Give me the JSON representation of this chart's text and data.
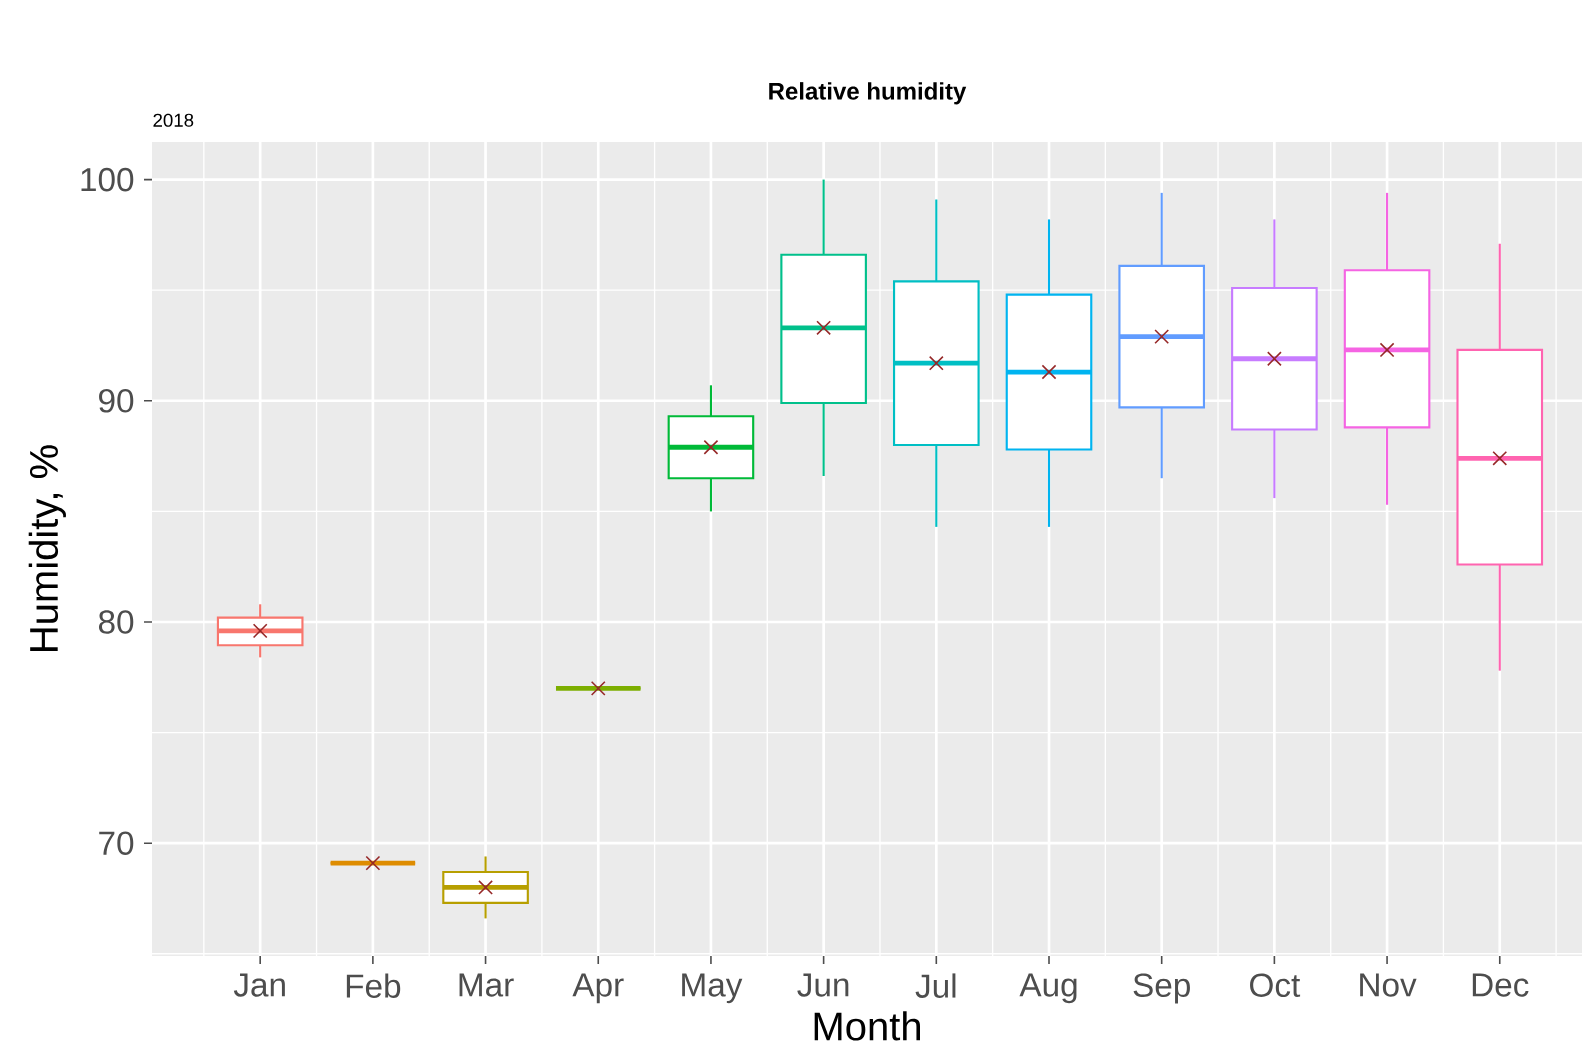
{
  "chart_data": {
    "type": "box",
    "title": "Relative humidity",
    "subtitle": "2018",
    "xlabel": "Month",
    "ylabel": "Humidity, %",
    "categories": [
      "Jan",
      "Feb",
      "Mar",
      "Apr",
      "May",
      "Jun",
      "Jul",
      "Aug",
      "Sep",
      "Oct",
      "Nov",
      "Dec"
    ],
    "ylim": [
      64.9,
      101.7
    ],
    "yticks": [
      70,
      80,
      90,
      100
    ],
    "grid": true,
    "colors": [
      "#f8766d",
      "#de8c00",
      "#b79f00",
      "#7cae00",
      "#00ba38",
      "#00c08b",
      "#00bfc4",
      "#00b4f0",
      "#619cff",
      "#c77cff",
      "#f564e3",
      "#ff64b0"
    ],
    "boxes": [
      {
        "low": 78.4,
        "q1": 78.95,
        "median": 79.6,
        "q3": 80.2,
        "high": 80.8,
        "mean": 79.6
      },
      {
        "low": 69.1,
        "q1": 69.1,
        "median": 69.1,
        "q3": 69.1,
        "high": 69.1,
        "mean": 69.1
      },
      {
        "low": 66.6,
        "q1": 67.3,
        "median": 68.0,
        "q3": 68.7,
        "high": 69.4,
        "mean": 68.0
      },
      {
        "low": 77.0,
        "q1": 77.0,
        "median": 77.0,
        "q3": 77.0,
        "high": 77.0,
        "mean": 77.0
      },
      {
        "low": 85.0,
        "q1": 86.5,
        "median": 87.9,
        "q3": 89.3,
        "high": 90.7,
        "mean": 87.9
      },
      {
        "low": 86.6,
        "q1": 89.9,
        "median": 93.3,
        "q3": 96.6,
        "high": 100.0,
        "mean": 93.3
      },
      {
        "low": 84.3,
        "q1": 88.0,
        "median": 91.7,
        "q3": 95.4,
        "high": 99.1,
        "mean": 91.7
      },
      {
        "low": 84.3,
        "q1": 87.8,
        "median": 91.3,
        "q3": 94.8,
        "high": 98.2,
        "mean": 91.3
      },
      {
        "low": 86.5,
        "q1": 89.7,
        "median": 92.9,
        "q3": 96.1,
        "high": 99.4,
        "mean": 92.9
      },
      {
        "low": 85.6,
        "q1": 88.7,
        "median": 91.9,
        "q3": 95.1,
        "high": 98.2,
        "mean": 91.9
      },
      {
        "low": 85.3,
        "q1": 88.8,
        "median": 92.3,
        "q3": 95.9,
        "high": 99.4,
        "mean": 92.3
      },
      {
        "low": 77.8,
        "q1": 82.6,
        "median": 87.4,
        "q3": 92.3,
        "high": 97.1,
        "mean": 87.4
      }
    ]
  }
}
